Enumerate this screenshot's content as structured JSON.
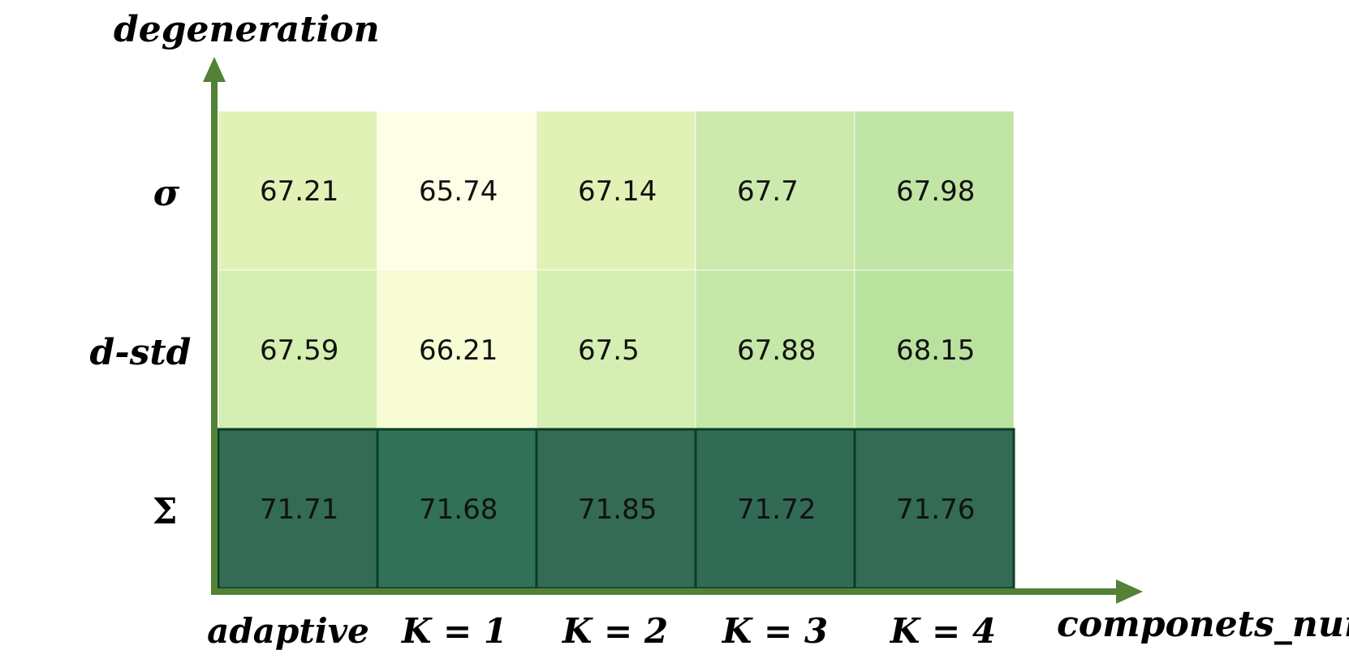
{
  "chart_data": {
    "type": "heatmap",
    "title": "",
    "xlabel": "componets_num",
    "ylabel": "degeneration",
    "x_categories": [
      "adaptive",
      "K = 1",
      "K = 2",
      "K = 3",
      "K = 4"
    ],
    "y_categories": [
      "σ",
      "d-std",
      "Σ"
    ],
    "values": [
      [
        "67.21",
        "65.74",
        "67.14",
        "67.7",
        "67.98"
      ],
      [
        "67.59",
        "66.21",
        "67.5",
        "67.88",
        "68.15"
      ],
      [
        "71.71",
        "71.68",
        "71.85",
        "71.72",
        "71.76"
      ]
    ],
    "cell_colors": [
      [
        "#e2f2b6",
        "#fefee6",
        "#e2f2b6",
        "#cce9ae",
        "#c1e5a5"
      ],
      [
        "#d5eeb2",
        "#f8fcd5",
        "#d5eeb2",
        "#c5e7a8",
        "#b9e29f"
      ],
      [
        "#336b55",
        "#317157",
        "#336b55",
        "#326b55",
        "#336b55"
      ]
    ],
    "colors": {
      "axis": "#538135",
      "highlight_border": "#0b3d26"
    }
  }
}
